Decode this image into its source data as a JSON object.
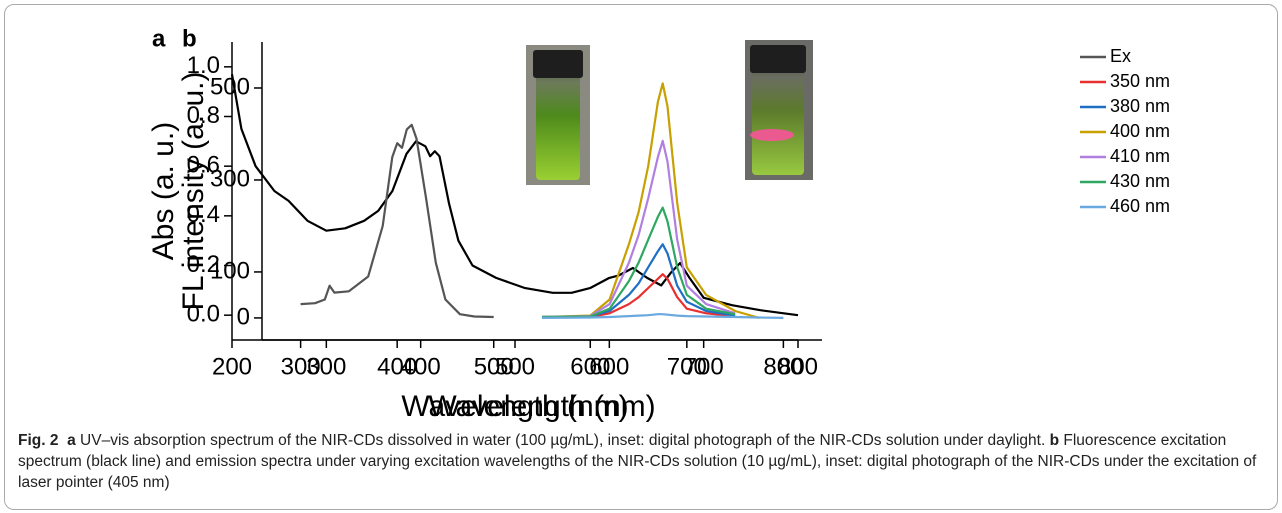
{
  "chart_data": [
    {
      "type": "line",
      "panel_label": "a",
      "xlabel": "Wavelength (nm)",
      "ylabel": "Abs (a. u.)",
      "xlim": [
        200,
        800
      ],
      "ylim": [
        -0.1,
        1.1
      ],
      "xticks": [
        200,
        300,
        400,
        500,
        600,
        700,
        800
      ],
      "yticks": [
        {
          "value": 0,
          "label": "0.0"
        },
        0.2,
        0.4,
        0.6,
        0.8,
        {
          "value": 1,
          "label": "1.0"
        }
      ],
      "x": [
        200,
        210,
        225,
        245,
        260,
        280,
        300,
        320,
        340,
        355,
        370,
        385,
        395,
        405,
        410,
        415,
        420,
        430,
        440,
        455,
        480,
        510,
        540,
        560,
        580,
        600,
        610,
        625,
        640,
        655,
        665,
        675,
        685,
        700,
        730,
        760,
        800
      ],
      "series": [
        {
          "color": "#000000",
          "values": [
            0.97,
            0.75,
            0.6,
            0.5,
            0.46,
            0.38,
            0.34,
            0.35,
            0.38,
            0.42,
            0.5,
            0.65,
            0.7,
            0.68,
            0.64,
            0.66,
            0.64,
            0.45,
            0.3,
            0.2,
            0.15,
            0.11,
            0.09,
            0.09,
            0.11,
            0.15,
            0.16,
            0.19,
            0.15,
            0.12,
            0.17,
            0.21,
            0.15,
            0.07,
            0.04,
            0.02,
            0.0
          ]
        }
      ]
    },
    {
      "type": "line",
      "panel_label": "b",
      "xlabel": "Wavelength (nm)",
      "ylabel": "FL intensity (a. u.)",
      "xlim": [
        260,
        840
      ],
      "ylim": [
        -48,
        600
      ],
      "xticks": [
        300,
        400,
        500,
        600,
        700,
        800
      ],
      "yticks": [
        0,
        100,
        300,
        500
      ],
      "x": [
        300,
        315,
        325,
        330,
        335,
        350,
        370,
        385,
        395,
        400,
        405,
        410,
        415,
        420,
        430,
        440,
        450,
        465,
        480,
        500,
        550,
        600,
        620,
        640,
        650,
        660,
        670,
        675,
        680,
        690,
        700,
        720,
        750,
        775,
        800
      ],
      "series": [
        {
          "name": "Ex",
          "color": "#555555",
          "values": [
            30,
            32,
            40,
            70,
            55,
            58,
            90,
            200,
            350,
            380,
            370,
            410,
            420,
            390,
            260,
            120,
            40,
            8,
            3,
            2,
            null,
            null,
            null,
            null,
            null,
            null,
            null,
            null,
            null,
            null,
            null,
            null,
            null,
            null,
            null
          ]
        },
        {
          "name": "350 nm",
          "color": "#e83030",
          "values": [
            null,
            null,
            null,
            null,
            null,
            null,
            null,
            null,
            null,
            null,
            null,
            null,
            null,
            null,
            null,
            null,
            null,
            null,
            null,
            null,
            2,
            2,
            10,
            30,
            45,
            65,
            85,
            95,
            85,
            45,
            20,
            10,
            4,
            null,
            null
          ]
        },
        {
          "name": "380 nm",
          "color": "#1f6fc4",
          "values": [
            null,
            null,
            null,
            null,
            null,
            null,
            null,
            null,
            null,
            null,
            null,
            null,
            null,
            null,
            null,
            null,
            null,
            null,
            null,
            null,
            2,
            3,
            15,
            50,
            75,
            110,
            145,
            160,
            140,
            70,
            35,
            15,
            5,
            null,
            null
          ]
        },
        {
          "name": "400 nm",
          "color": "#c8a000",
          "values": [
            null,
            null,
            null,
            null,
            null,
            null,
            null,
            null,
            null,
            null,
            null,
            null,
            null,
            null,
            null,
            null,
            null,
            null,
            null,
            null,
            2,
            5,
            40,
            160,
            230,
            330,
            470,
            510,
            460,
            250,
            110,
            50,
            15,
            0,
            null
          ]
        },
        {
          "name": "410 nm",
          "color": "#b07fe0",
          "values": [
            null,
            null,
            null,
            null,
            null,
            null,
            null,
            null,
            null,
            null,
            null,
            null,
            null,
            null,
            null,
            null,
            null,
            null,
            null,
            null,
            2,
            4,
            30,
            120,
            180,
            260,
            350,
            385,
            340,
            170,
            70,
            30,
            10,
            null,
            null
          ]
        },
        {
          "name": "430 nm",
          "color": "#2ea860",
          "values": [
            null,
            null,
            null,
            null,
            null,
            null,
            null,
            null,
            null,
            null,
            null,
            null,
            null,
            null,
            null,
            null,
            null,
            null,
            null,
            null,
            2,
            3,
            20,
            80,
            120,
            170,
            220,
            240,
            210,
            110,
            50,
            20,
            8,
            null,
            null
          ]
        },
        {
          "name": "460 nm",
          "color": "#6aa8e0",
          "values": [
            null,
            null,
            null,
            null,
            null,
            null,
            null,
            null,
            null,
            null,
            null,
            null,
            null,
            null,
            null,
            null,
            null,
            null,
            null,
            null,
            0,
            1,
            2,
            4,
            5,
            6,
            8,
            8,
            7,
            5,
            4,
            3,
            2,
            1,
            0
          ]
        }
      ]
    }
  ],
  "caption": {
    "label": "Fig. 2",
    "a_label": "a",
    "a_text": "UV–vis absorption spectrum of the NIR-CDs dissolved in water (100 µg/mL), inset: digital photograph of the NIR-CDs solution under daylight.",
    "b_label": "b",
    "b_text": "Fluorescence excitation spectrum (black line) and emission spectra under varying excitation wavelengths of the NIR-CDs solution (10 µg/mL), inset: digital photograph of the NIR-CDs under the excitation of laser pointer (405 nm)"
  }
}
